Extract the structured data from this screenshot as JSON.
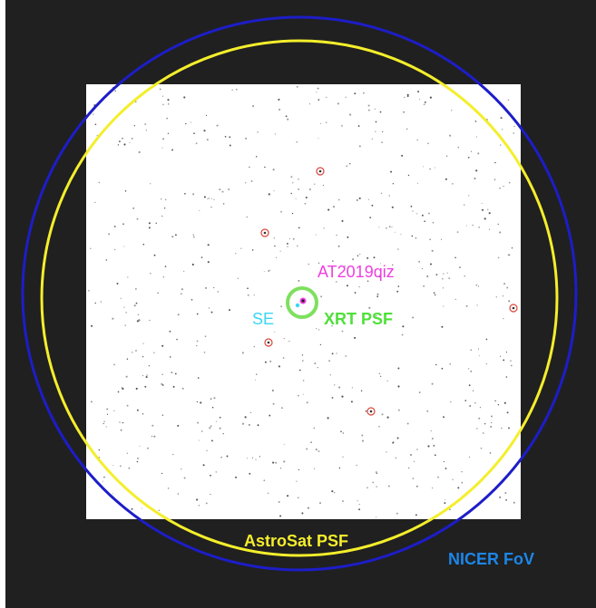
{
  "labels": {
    "target": "AT2019qiz",
    "se": "SE",
    "xrt": "XRT PSF",
    "astrosat": "AstroSat PSF",
    "nicer": "NICER FoV"
  },
  "colors": {
    "background": "#202020",
    "field": "#ffffff",
    "nicer_circle": "#1d1dc8",
    "astrosat_circle": "#f4ee2c",
    "xrt_circle": "#7ee05e",
    "source_markers": "#d8453a",
    "target_marker": "#ee3fe0",
    "se_marker": "#39d7f2"
  },
  "icons": {
    "source_marker": "red-ring-icon",
    "target": "magenta-dot-icon"
  }
}
